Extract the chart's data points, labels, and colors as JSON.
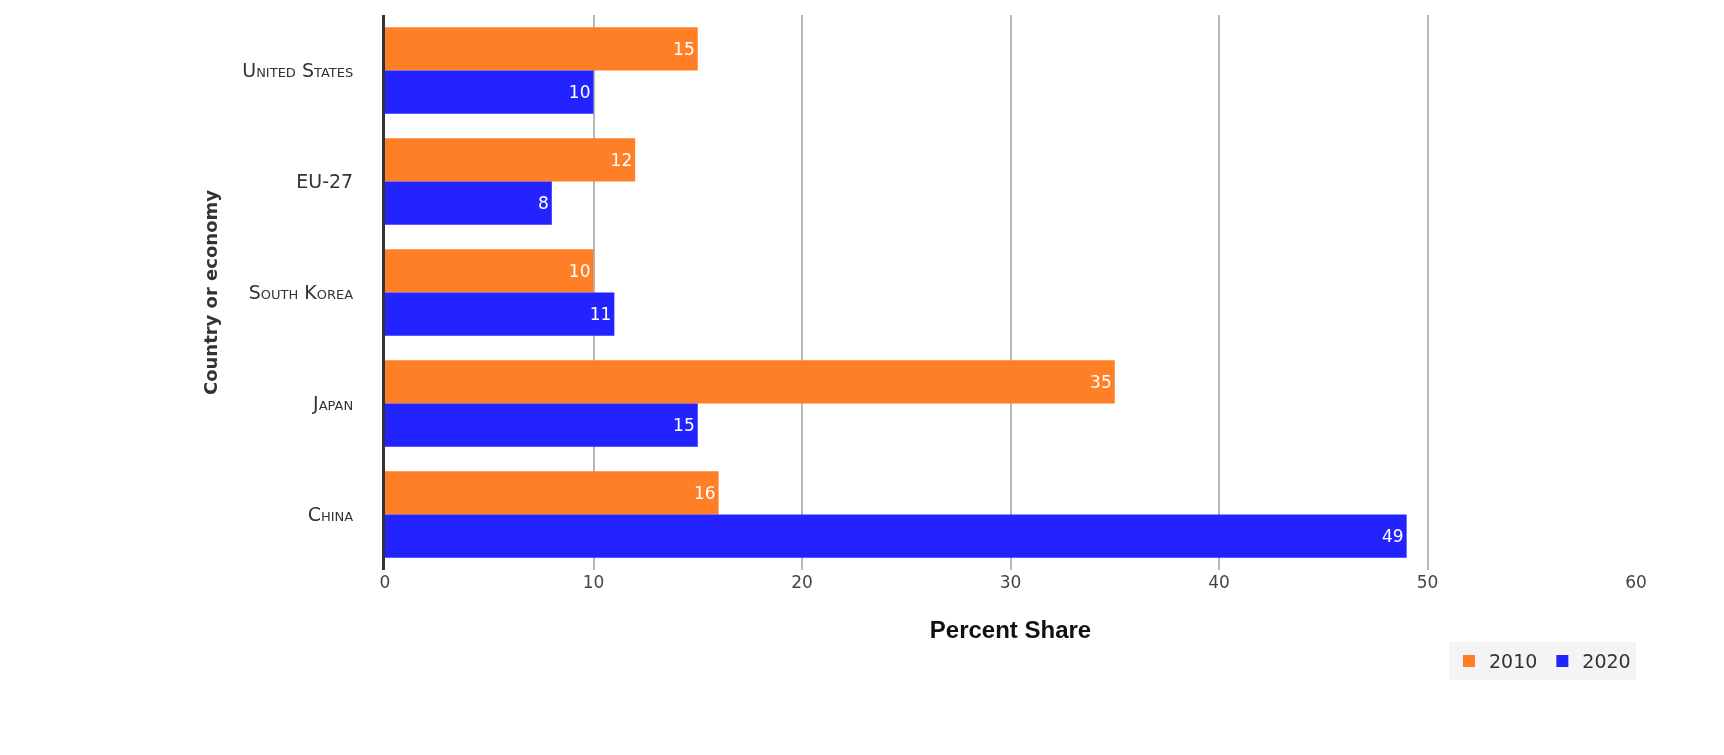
{
  "chart_data": {
    "type": "bar",
    "orientation": "horizontal",
    "xlabel": "Percent Share",
    "ylabel": "Country or economy",
    "categories": [
      "United States",
      "EU-27",
      "South Korea",
      "Japan",
      "China"
    ],
    "series": [
      {
        "name": "2010",
        "color": "#ff7f27",
        "values": [
          15,
          12,
          10,
          35,
          16
        ]
      },
      {
        "name": "2020",
        "color": "#2323ff",
        "values": [
          10,
          8,
          11,
          15,
          49
        ]
      }
    ],
    "xlim": [
      0,
      60
    ],
    "xticks": [
      0,
      10,
      20,
      30,
      40,
      50,
      60
    ],
    "grid": "x",
    "legend": "bottom right",
    "data_labels": true
  }
}
